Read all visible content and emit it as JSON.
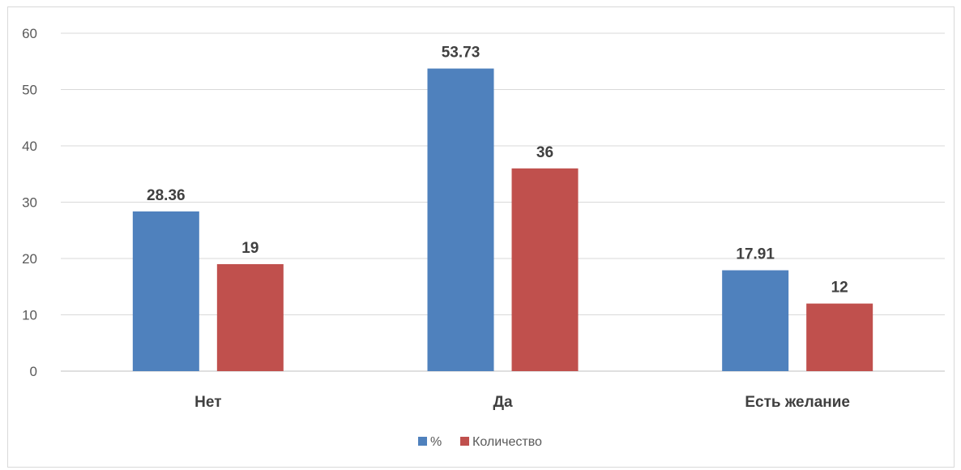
{
  "chart_data": {
    "type": "bar",
    "categories": [
      "Нет",
      "Да",
      "Есть желание"
    ],
    "series": [
      {
        "name": "%",
        "values": [
          28.36,
          53.73,
          17.91
        ],
        "color": "#4f81bd",
        "labels": [
          "28.36",
          "53.73",
          "17.91"
        ]
      },
      {
        "name": "Количество",
        "values": [
          19,
          36,
          12
        ],
        "color": "#c0504d",
        "labels": [
          "19",
          "36",
          "12"
        ]
      }
    ],
    "ylim": [
      0,
      60
    ],
    "yticks": [
      "0",
      "10",
      "20",
      "30",
      "40",
      "50",
      "60"
    ],
    "grid": true,
    "legend": "bottom",
    "title": "",
    "xlabel": "",
    "ylabel": ""
  }
}
